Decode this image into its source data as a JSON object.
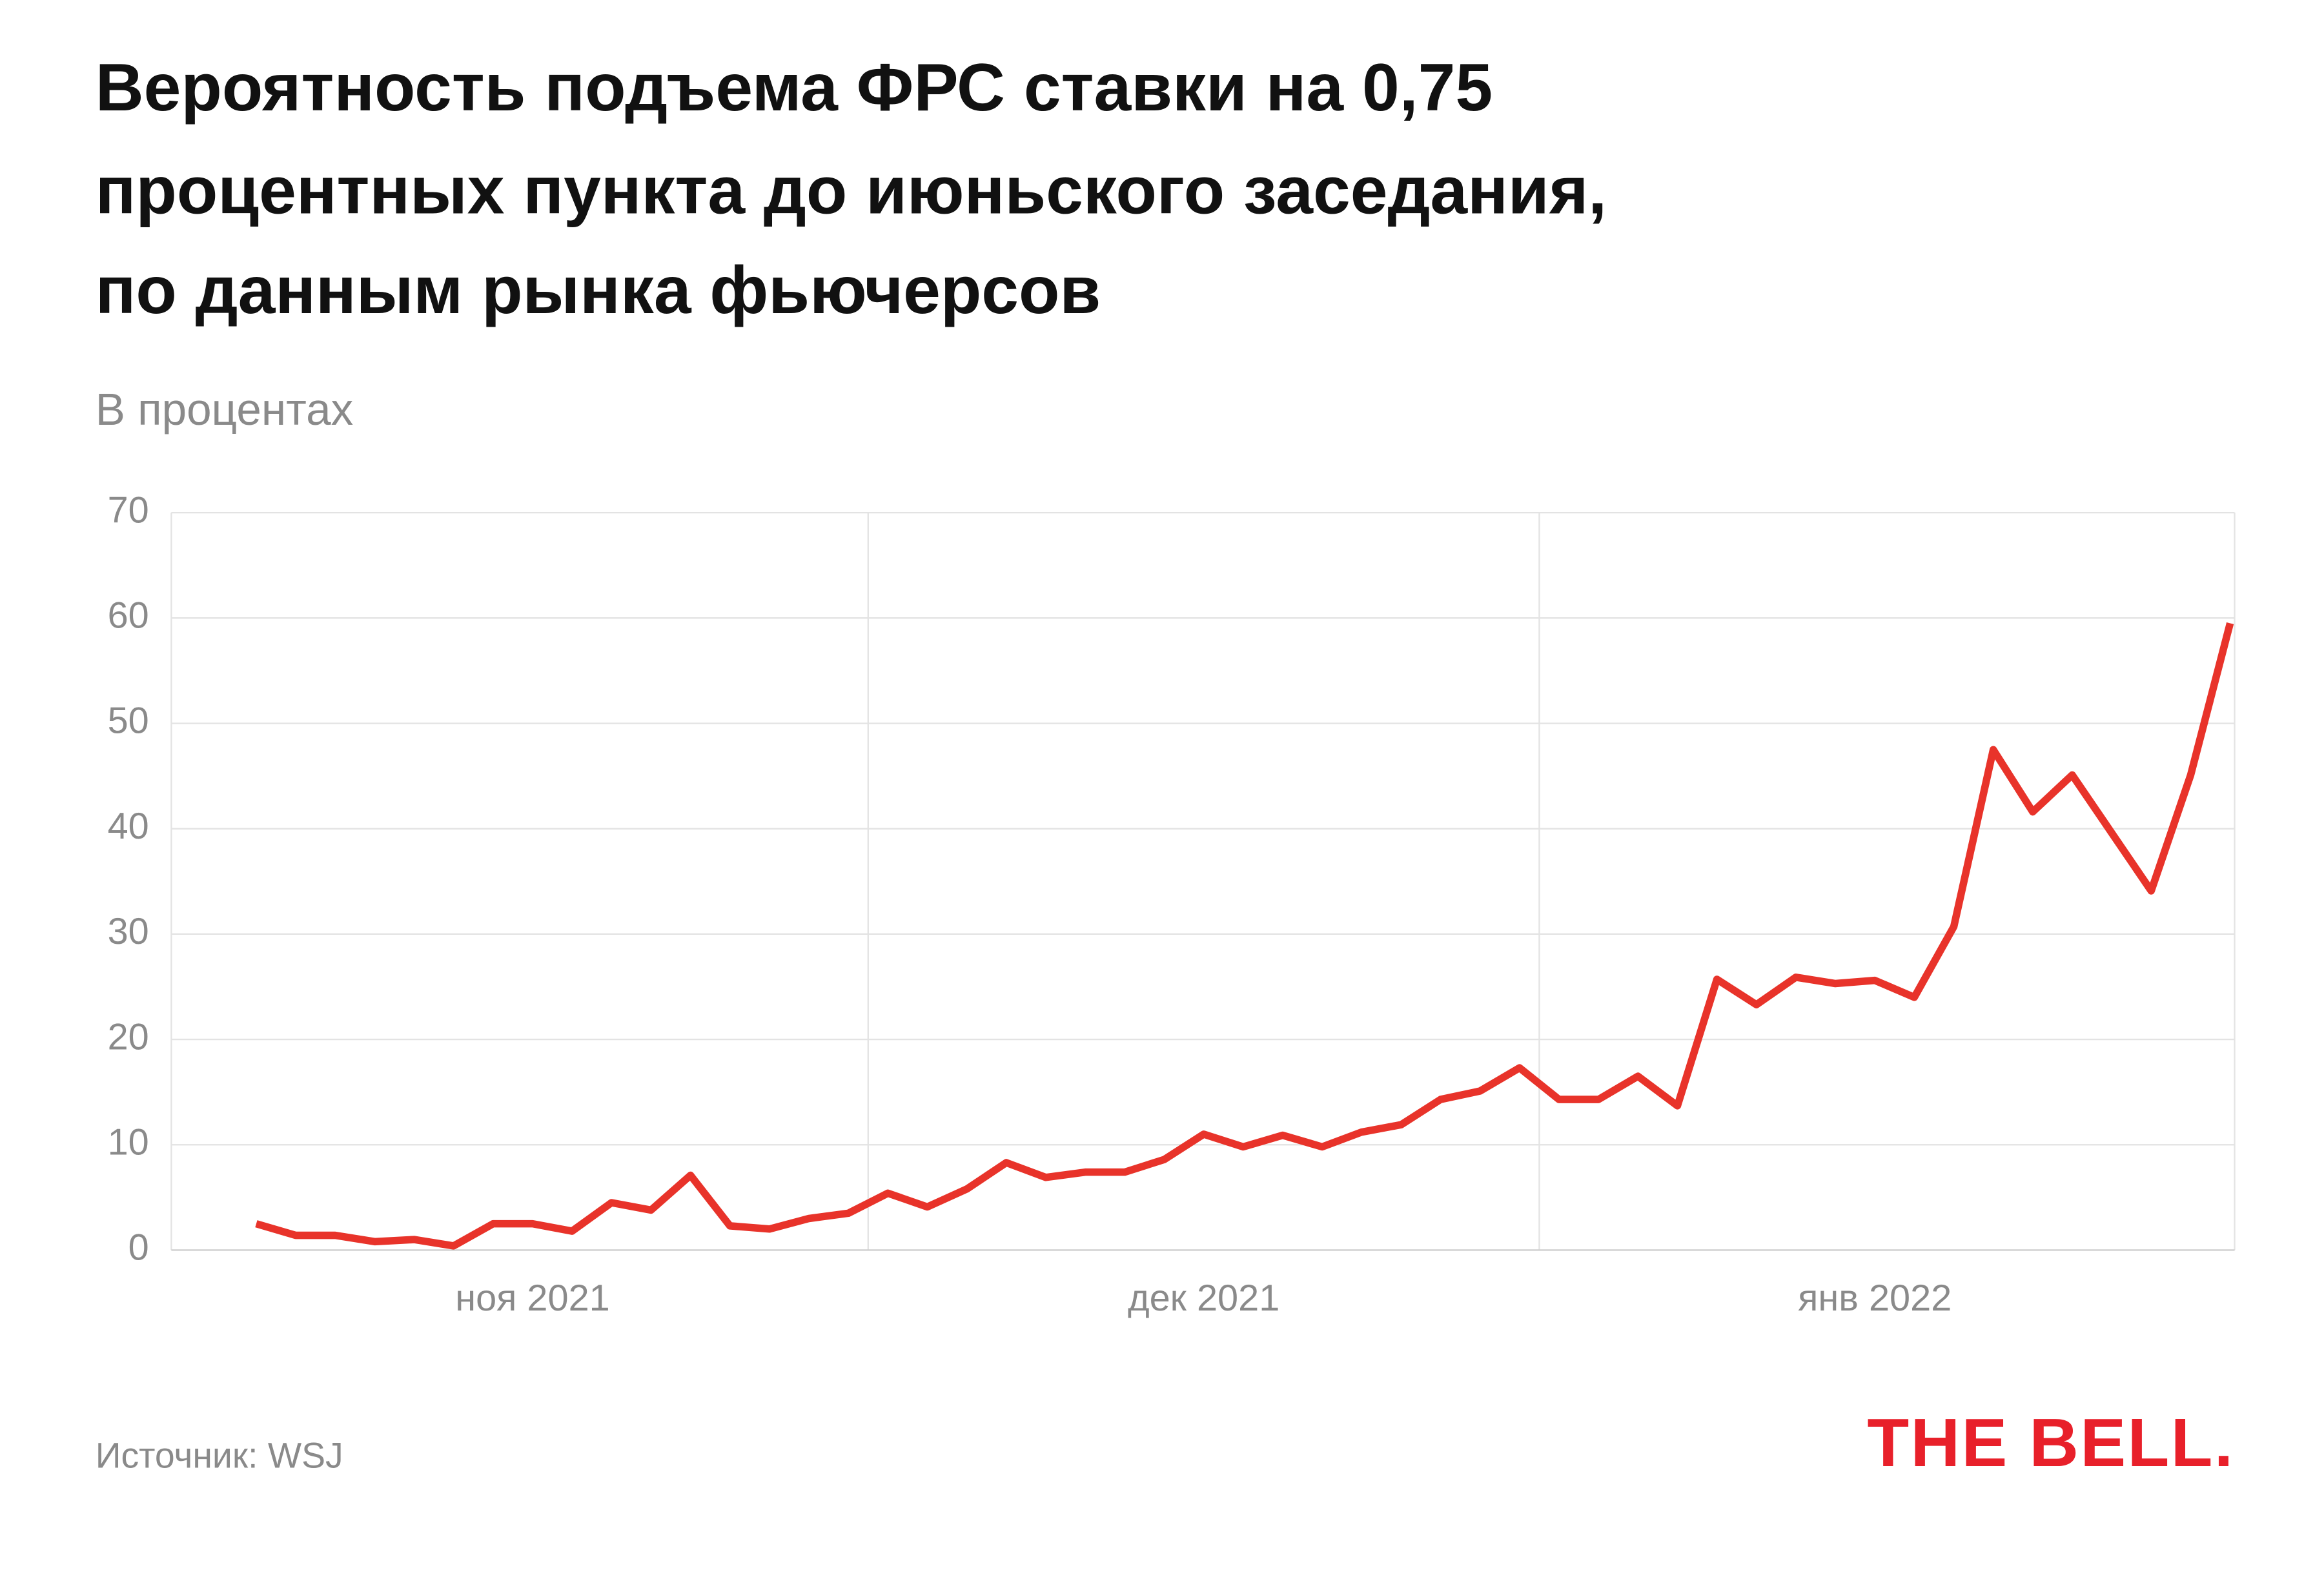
{
  "chart_data": {
    "type": "line",
    "title": [
      "Вероятность подъема ФРС ставки на 0,75",
      "процентных пункта до июньского заседания,",
      "по данным рынка фьючерсов"
    ],
    "subtitle": "В процентах",
    "source": "Источник: WSJ",
    "logo": "THE BELL.",
    "categories": [
      null,
      null,
      null,
      null,
      null,
      null,
      null,
      "ноя 2021",
      null,
      null,
      null,
      null,
      null,
      null,
      null,
      null,
      null,
      null,
      null,
      null,
      null,
      null,
      null,
      null,
      "дек 2021",
      null,
      null,
      null,
      null,
      null,
      null,
      null,
      null,
      null,
      null,
      null,
      null,
      null,
      null,
      null,
      null,
      "янв 2022",
      null,
      null,
      null,
      null,
      null,
      null,
      null,
      null,
      null
    ],
    "series": [
      {
        "name": "Вероятность",
        "color": "#e8332a",
        "values": [
          2.5,
          1.4,
          1.4,
          0.8,
          1.0,
          0.4,
          2.5,
          2.5,
          1.8,
          4.5,
          3.8,
          7.1,
          2.3,
          2.0,
          3.0,
          3.5,
          5.4,
          4.1,
          5.8,
          8.3,
          6.9,
          7.4,
          7.4,
          8.6,
          11.0,
          9.8,
          10.9,
          9.8,
          11.2,
          11.9,
          14.3,
          15.1,
          17.3,
          14.3,
          14.3,
          16.5,
          13.7,
          25.7,
          23.3,
          25.9,
          25.3,
          25.6,
          24.0,
          30.7,
          47.5,
          41.6,
          45.1,
          39.6,
          34.1,
          45.1,
          59.5
        ]
      }
    ],
    "ylim": [
      0,
      70
    ],
    "yticks": [
      0,
      10,
      20,
      30,
      40,
      50,
      60,
      70
    ],
    "grid": true
  }
}
